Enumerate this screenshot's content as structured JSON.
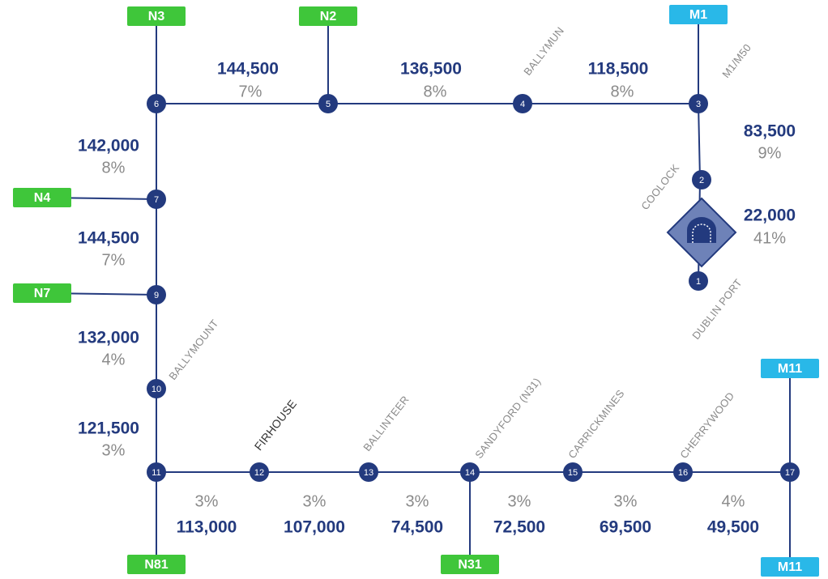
{
  "junctions": [
    "1",
    "2",
    "3",
    "4",
    "5",
    "6",
    "7",
    "9",
    "10",
    "11",
    "12",
    "13",
    "14",
    "15",
    "16",
    "17"
  ],
  "roads": [
    "N3",
    "N2",
    "M1",
    "N4",
    "N7",
    "N81",
    "N31",
    "M11",
    "M11"
  ],
  "places": [
    "BALLYMUN",
    "M1/M50",
    "COOLOCK",
    "DUBLIN PORT",
    "BALLYMOUNT",
    "FIRHOUSE",
    "BALLINTEER",
    "SANDYFORD (N31)",
    "CARRICKMINES",
    "CHERRYWOOD"
  ],
  "segments": [
    {
      "volume": "144,500",
      "percent": "7%"
    },
    {
      "volume": "136,500",
      "percent": "8%"
    },
    {
      "volume": "118,500",
      "percent": "8%"
    },
    {
      "volume": "83,500",
      "percent": "9%"
    },
    {
      "volume": "22,000",
      "percent": "41%"
    },
    {
      "volume": "142,000",
      "percent": "8%"
    },
    {
      "volume": "144,500",
      "percent": "7%"
    },
    {
      "volume": "132,000",
      "percent": "4%"
    },
    {
      "volume": "121,500",
      "percent": "3%"
    },
    {
      "volume": "113,000",
      "percent": "3%"
    },
    {
      "volume": "107,000",
      "percent": "3%"
    },
    {
      "volume": "74,500",
      "percent": "3%"
    },
    {
      "volume": "72,500",
      "percent": "3%"
    },
    {
      "volume": "69,500",
      "percent": "3%"
    },
    {
      "volume": "49,500",
      "percent": "4%"
    }
  ]
}
